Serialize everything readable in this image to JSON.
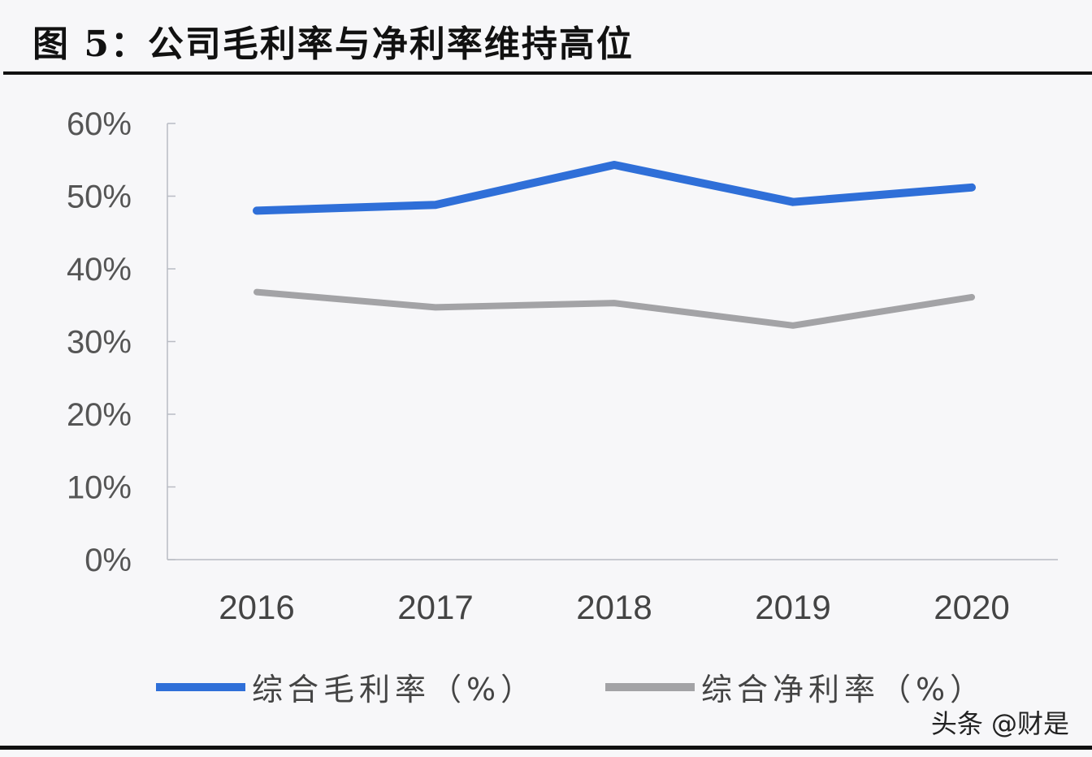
{
  "title": "图 5：公司毛利率与净利率维持高位",
  "watermark": "头条 @财是",
  "chart_data": {
    "type": "line",
    "title": "图 5：公司毛利率与净利率维持高位",
    "xlabel": "",
    "ylabel": "",
    "categories": [
      "2016",
      "2017",
      "2018",
      "2019",
      "2020"
    ],
    "series": [
      {
        "name": "综合毛利率（%）",
        "color": "#2f6fd8",
        "values": [
          48.0,
          48.8,
          54.3,
          49.2,
          51.2
        ]
      },
      {
        "name": "综合净利率（%）",
        "color": "#a3a3a6",
        "values": [
          36.8,
          34.7,
          35.3,
          32.2,
          36.1
        ]
      }
    ],
    "yticks": [
      "0%",
      "10%",
      "20%",
      "30%",
      "40%",
      "50%",
      "60%"
    ],
    "ylim": [
      0,
      60
    ],
    "grid": false,
    "legend_position": "bottom"
  },
  "legend": [
    {
      "label": "综合毛利率（%）",
      "color": "#2f6fd8"
    },
    {
      "label": "综合净利率（%）",
      "color": "#a3a3a6"
    }
  ]
}
